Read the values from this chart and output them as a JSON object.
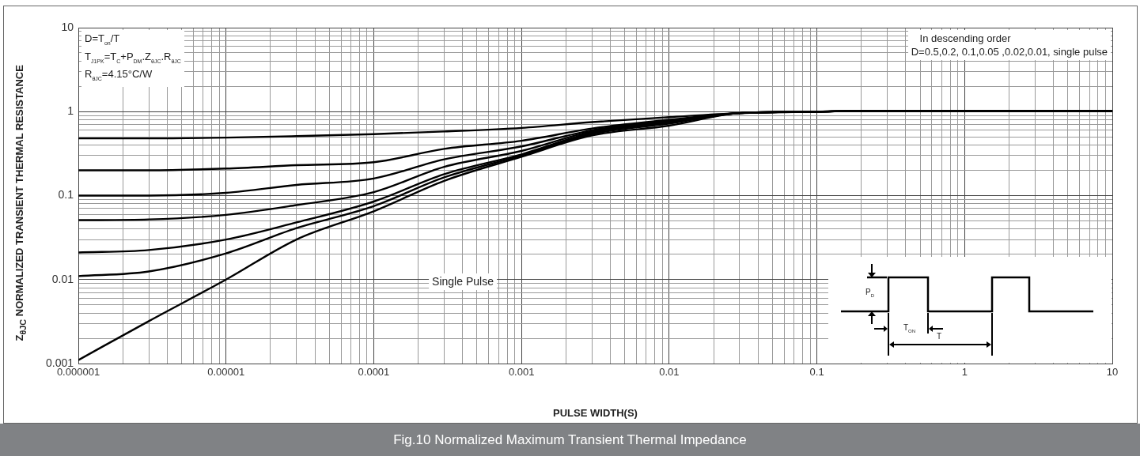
{
  "chart_data": {
    "type": "line",
    "title": "Fig.10 Normalized Maximum Transient Thermal Impedance",
    "xlabel": "PULSE WIDTH(S)",
    "ylabel": "Z$_{θJC}$ NORMALIZED TRANSIENT THERMAL RESISTANCE",
    "annotations": [
      "D=T$_{on}$/T",
      "T$_{J1PK}$=T$_{C}$+P$_{DM}$.Z$_{θJC}$.R$_{θJC}$",
      "R$_{θJC}$=4.15°C/W",
      "In descending order",
      "D=0.5,0.2, 0.1,0.05 ,0.02,0.01, single pulse",
      "Single Pulse",
      "P$_{D}$",
      "T$_{ON}$",
      "T"
    ],
    "x": [
      1e-06,
      3e-06,
      1e-05,
      3e-05,
      0.0001,
      0.0003,
      0.001,
      0.003,
      0.01,
      0.03,
      0.1,
      0.2,
      10
    ],
    "series": [
      {
        "color": "#000000",
        "values": [
          0.48,
          0.48,
          0.49,
          0.51,
          0.54,
          0.58,
          0.64,
          0.75,
          0.86,
          0.96,
          1.0,
          1.02,
          1.01
        ]
      },
      {
        "color": "#000000",
        "values": [
          0.2,
          0.2,
          0.21,
          0.23,
          0.25,
          0.36,
          0.45,
          0.63,
          0.8,
          0.96,
          1.0,
          1.02,
          1.01
        ]
      },
      {
        "color": "#000000",
        "values": [
          0.1,
          0.1,
          0.108,
          0.134,
          0.16,
          0.27,
          0.385,
          0.6,
          0.78,
          0.96,
          1.0,
          1.02,
          1.01
        ]
      },
      {
        "color": "#000000",
        "values": [
          0.051,
          0.052,
          0.059,
          0.077,
          0.11,
          0.22,
          0.34,
          0.58,
          0.76,
          0.96,
          1.0,
          1.02,
          1.01
        ]
      },
      {
        "color": "#000000",
        "values": [
          0.021,
          0.0225,
          0.03,
          0.048,
          0.085,
          0.18,
          0.31,
          0.56,
          0.74,
          0.96,
          1.0,
          1.02,
          1.01
        ]
      },
      {
        "color": "#000000",
        "values": [
          0.011,
          0.0125,
          0.0205,
          0.041,
          0.075,
          0.165,
          0.3,
          0.54,
          0.72,
          0.96,
          1.0,
          1.02,
          1.01
        ]
      },
      {
        "color": "#000000",
        "values": [
          0.0011,
          0.0032,
          0.01,
          0.03,
          0.065,
          0.15,
          0.29,
          0.52,
          0.68,
          0.96,
          1.0,
          1.02,
          1.01
        ]
      }
    ],
    "xlim": [
      1e-06,
      10
    ],
    "ylim": [
      0.001,
      10
    ],
    "xticks": [
      {
        "value": 1e-06,
        "label": "0.000001"
      },
      {
        "value": 2e-06,
        "label": null
      },
      {
        "value": 3e-06,
        "label": null
      },
      {
        "value": 4e-06,
        "label": null
      },
      {
        "value": 5e-06,
        "label": null
      },
      {
        "value": 6e-06,
        "label": null
      },
      {
        "value": 7e-06,
        "label": null
      },
      {
        "value": 8e-06,
        "label": null
      },
      {
        "value": 9e-06,
        "label": null
      },
      {
        "value": 1e-05,
        "label": "0.00001"
      },
      {
        "value": 2e-05,
        "label": null
      },
      {
        "value": 3e-05,
        "label": null
      },
      {
        "value": 4e-05,
        "label": null
      },
      {
        "value": 5e-05,
        "label": null
      },
      {
        "value": 6e-05,
        "label": null
      },
      {
        "value": 7e-05,
        "label": null
      },
      {
        "value": 8e-05,
        "label": null
      },
      {
        "value": 9e-05,
        "label": null
      },
      0.0001,
      {
        "value": 0.0002,
        "label": null
      },
      {
        "value": 0.0003,
        "label": null
      },
      {
        "value": 0.0004,
        "label": null
      },
      {
        "value": 0.0005,
        "label": null
      },
      {
        "value": 0.0006,
        "label": null
      },
      {
        "value": 0.0007,
        "label": null
      },
      {
        "value": 0.0008,
        "label": null
      },
      {
        "value": 0.0009,
        "label": null
      },
      0.001,
      {
        "value": 0.002,
        "label": null
      },
      {
        "value": 0.003,
        "label": null
      },
      {
        "value": 0.004,
        "label": null
      },
      {
        "value": 0.005,
        "label": null
      },
      {
        "value": 0.006,
        "label": null
      },
      {
        "value": 0.007,
        "label": null
      },
      {
        "value": 0.008,
        "label": null
      },
      {
        "value": 0.009,
        "label": null
      },
      0.01,
      {
        "value": 0.02,
        "label": null
      },
      {
        "value": 0.03,
        "label": null
      },
      {
        "value": 0.04,
        "label": null
      },
      {
        "value": 0.05,
        "label": null
      },
      {
        "value": 0.06,
        "label": null
      },
      {
        "value": 0.07,
        "label": null
      },
      {
        "value": 0.08,
        "label": null
      },
      {
        "value": 0.09,
        "label": null
      },
      0.1,
      {
        "value": 0.2,
        "label": null
      },
      {
        "value": 0.3,
        "label": null
      },
      {
        "value": 0.4,
        "label": null
      },
      {
        "value": 0.5,
        "label": null
      },
      {
        "value": 0.6,
        "label": null
      },
      {
        "value": 0.7,
        "label": null
      },
      {
        "value": 0.8,
        "label": null
      },
      {
        "value": 0.9,
        "label": null
      },
      1,
      {
        "value": 2,
        "label": null
      },
      {
        "value": 3,
        "label": null
      },
      {
        "value": 4,
        "label": null
      },
      {
        "value": 5,
        "label": null
      },
      {
        "value": 6,
        "label": null
      },
      {
        "value": 7,
        "label": null
      },
      {
        "value": 8,
        "label": null
      },
      {
        "value": 9,
        "label": null
      },
      10
    ],
    "yticks": [
      0.001,
      {
        "value": 0.002,
        "label": null
      },
      {
        "value": 0.003,
        "label": null
      },
      {
        "value": 0.004,
        "label": null
      },
      {
        "value": 0.005,
        "label": null
      },
      {
        "value": 0.006,
        "label": null
      },
      {
        "value": 0.007,
        "label": null
      },
      {
        "value": 0.008,
        "label": null
      },
      {
        "value": 0.009,
        "label": null
      },
      0.01,
      {
        "value": 0.02,
        "label": null
      },
      {
        "value": 0.03,
        "label": null
      },
      {
        "value": 0.04,
        "label": null
      },
      {
        "value": 0.05,
        "label": null
      },
      {
        "value": 0.06,
        "label": null
      },
      {
        "value": 0.07,
        "label": null
      },
      {
        "value": 0.08,
        "label": null
      },
      {
        "value": 0.09,
        "label": null
      },
      0.1,
      {
        "value": 0.2,
        "label": null
      },
      {
        "value": 0.3,
        "label": null
      },
      {
        "value": 0.4,
        "label": null
      },
      {
        "value": 0.5,
        "label": null
      },
      {
        "value": 0.6,
        "label": null
      },
      {
        "value": 0.7,
        "label": null
      },
      {
        "value": 0.8,
        "label": null
      },
      {
        "value": 0.9,
        "label": null
      },
      1,
      {
        "value": 2,
        "label": null
      },
      {
        "value": 3,
        "label": null
      },
      {
        "value": 4,
        "label": null
      },
      {
        "value": 5,
        "label": null
      },
      {
        "value": 6,
        "label": null
      },
      {
        "value": 7,
        "label": null
      },
      {
        "value": 8,
        "label": null
      },
      {
        "value": 9,
        "label": null
      },
      10
    ],
    "log": "xy",
    "grid": true,
    "marker": "none",
    "line_style": "solid"
  }
}
